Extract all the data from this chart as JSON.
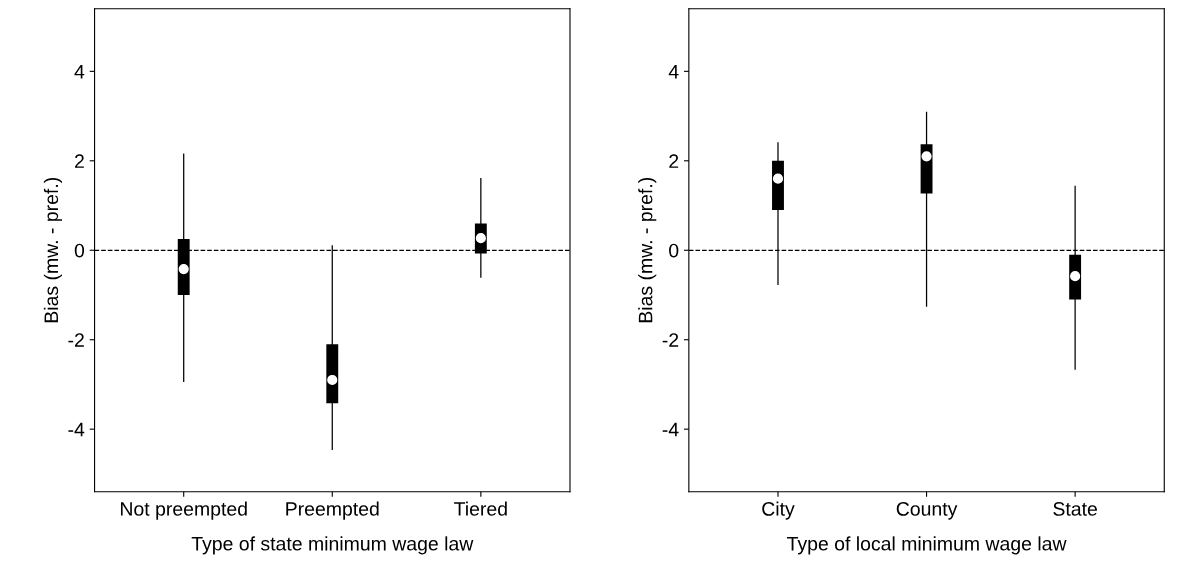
{
  "chart_data": [
    {
      "type": "box",
      "xlabel": "Type of state minimum wage law",
      "ylabel": "Bias (mw. - pref.)",
      "categories": [
        "Not preempted",
        "Preempted",
        "Tiered"
      ],
      "boxes": [
        {
          "low": -2.93,
          "q1": -1.0,
          "median": -0.42,
          "q3": 0.25,
          "high": 2.15
        },
        {
          "low": -4.45,
          "q1": -3.42,
          "median": -2.9,
          "q3": -2.1,
          "high": 0.1
        },
        {
          "low": -0.6,
          "q1": -0.07,
          "median": 0.27,
          "q3": 0.6,
          "high": 1.6
        }
      ],
      "color": "#000000",
      "ylim": [
        -5.4,
        5.4
      ],
      "yticks": [
        -4,
        -2,
        0,
        2,
        4
      ],
      "grid": false,
      "ref_lines": [
        {
          "axis": "y",
          "value": 0,
          "line_style": "dashed",
          "color": "#000000"
        }
      ]
    },
    {
      "type": "box",
      "xlabel": "Type of local minimum wage law",
      "ylabel": "Bias (mw. - pref.)",
      "categories": [
        "City",
        "County",
        "State"
      ],
      "boxes": [
        {
          "low": -0.76,
          "q1": 0.9,
          "median": 1.6,
          "q3": 2.0,
          "high": 2.4
        },
        {
          "low": -1.25,
          "q1": 1.27,
          "median": 2.1,
          "q3": 2.37,
          "high": 3.08
        },
        {
          "low": -2.66,
          "q1": -1.1,
          "median": -0.58,
          "q3": -0.1,
          "high": 1.43
        }
      ],
      "color": "#000000",
      "ylim": [
        -5.4,
        5.4
      ],
      "yticks": [
        -4,
        -2,
        0,
        2,
        4
      ],
      "grid": false,
      "ref_lines": [
        {
          "axis": "y",
          "value": 0,
          "line_style": "dashed",
          "color": "#000000"
        }
      ]
    }
  ]
}
